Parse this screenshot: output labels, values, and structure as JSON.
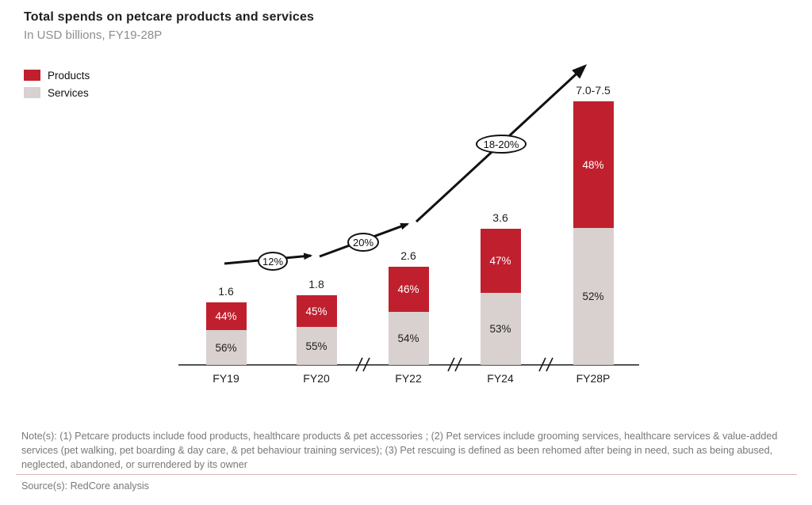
{
  "chart_data": {
    "type": "bar",
    "stacked": true,
    "title": "Total spends on petcare products and services",
    "subtitle": "In USD billions, FY19-28P",
    "unit": "USD billions",
    "categories": [
      "FY19",
      "FY20",
      "FY22",
      "FY24",
      "FY28P"
    ],
    "totals": [
      "1.6",
      "1.8",
      "2.6",
      "3.6",
      "7.0-7.5"
    ],
    "series": [
      {
        "name": "Products",
        "color": "#c0202e",
        "values_pct": [
          44,
          45,
          46,
          47,
          48
        ]
      },
      {
        "name": "Services",
        "color": "#d9d0d0",
        "values_pct": [
          56,
          55,
          54,
          53,
          52
        ]
      }
    ],
    "growth_annotations": [
      "12%",
      "20%",
      "18-20%"
    ],
    "axis_breaks_between": [
      "FY20|FY22",
      "FY22|FY24",
      "FY24|FY28P"
    ],
    "legend_position": "top-left",
    "grid": false
  },
  "footer": {
    "notes": "Note(s): (1) Petcare products include food products, healthcare products & pet accessories ; (2) Pet services include grooming services, healthcare services & value-added services (pet walking, pet boarding & day care, & pet behaviour training services); (3) Pet rescuing is defined as been rehomed after being in need, such as being abused, neglected, abandoned, or surrendered by its owner",
    "source": "Source(s): RedCore analysis"
  },
  "colors": {
    "products": "#c0202e",
    "services": "#d9d0d0",
    "arrow": "#111111",
    "axis": "#1a1a1a",
    "divider": "#ddb6b6"
  }
}
